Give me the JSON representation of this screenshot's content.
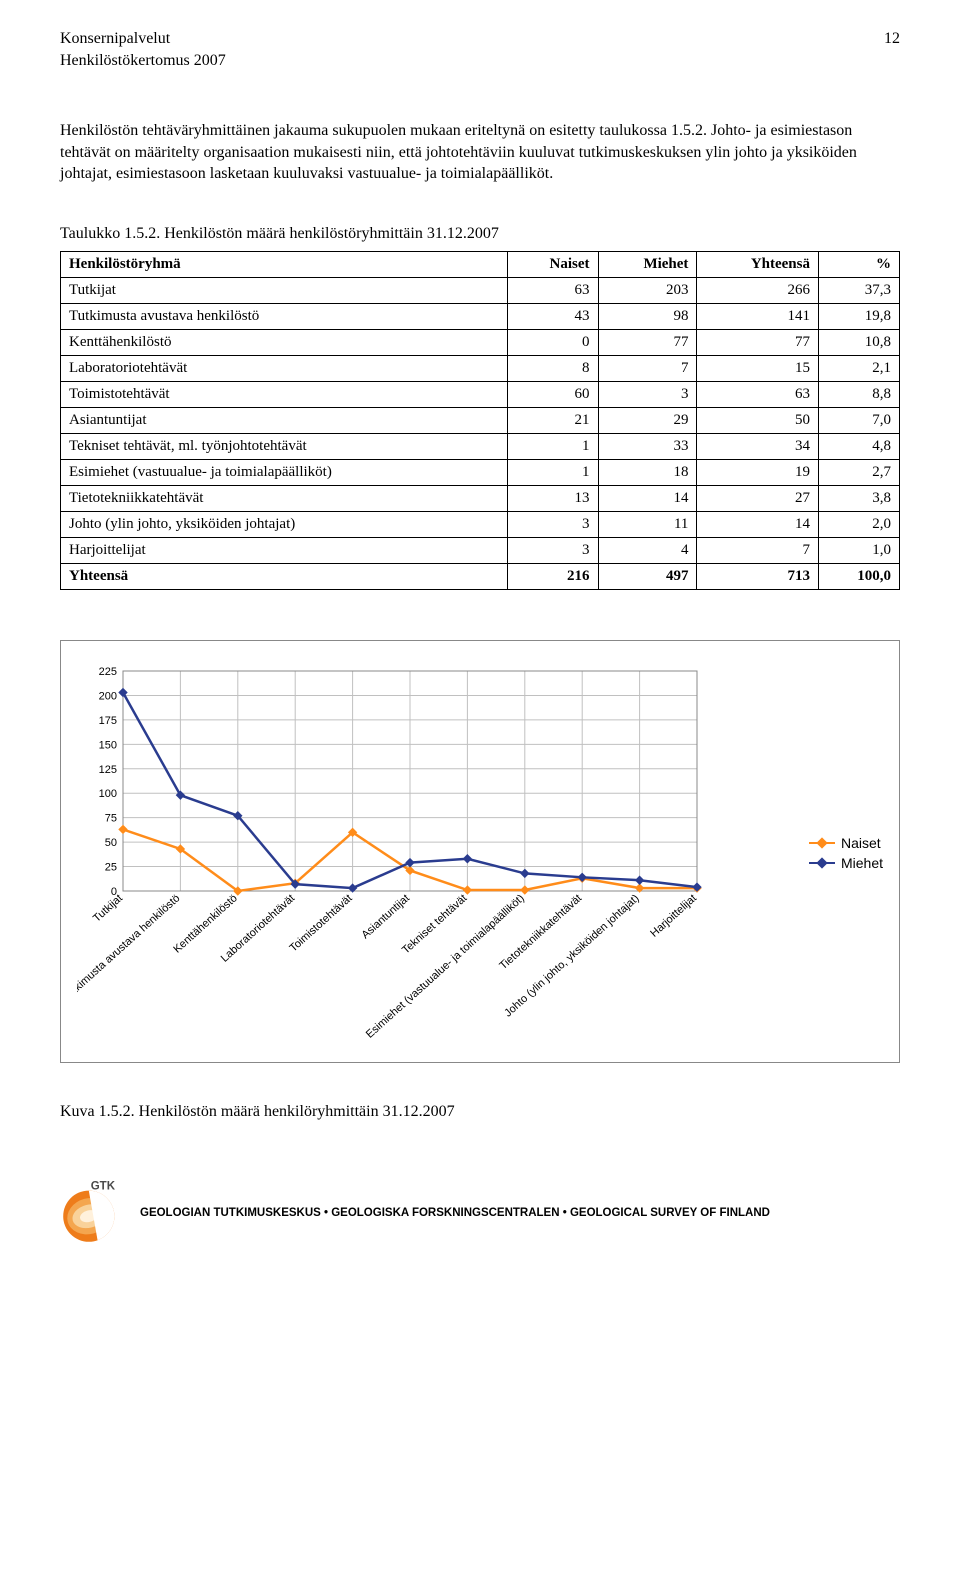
{
  "header": {
    "line1": "Konsernipalvelut",
    "line2": "Henkilöstökertomus 2007",
    "page": "12"
  },
  "paragraph": "Henkilöstön tehtäväryhmittäinen jakauma sukupuolen mukaan eriteltynä on esitetty taulukossa 1.5.2. Johto- ja esimiestason tehtävät on määritelty organisaation mukaisesti niin, että johtotehtäviin kuuluvat tutkimuskeskuksen ylin johto ja yksiköiden johtajat, esimiestasoon lasketaan kuuluvaksi vastuualue- ja toimialapäälliköt.",
  "table_caption": "Taulukko 1.5.2. Henkilöstön määrä henkilöstöryhmittäin 31.12.2007",
  "table": {
    "columns": [
      "Henkilöstöryhmä",
      "Naiset",
      "Miehet",
      "Yhteensä",
      "%"
    ],
    "rows": [
      [
        "Tutkijat",
        "63",
        "203",
        "266",
        "37,3"
      ],
      [
        "Tutkimusta avustava henkilöstö",
        "43",
        "98",
        "141",
        "19,8"
      ],
      [
        "Kenttähenkilöstö",
        "0",
        "77",
        "77",
        "10,8"
      ],
      [
        "Laboratoriotehtävät",
        "8",
        "7",
        "15",
        "2,1"
      ],
      [
        "Toimistotehtävät",
        "60",
        "3",
        "63",
        "8,8"
      ],
      [
        "Asiantuntijat",
        "21",
        "29",
        "50",
        "7,0"
      ],
      [
        "Tekniset tehtävät, ml. työnjohtotehtävät",
        "1",
        "33",
        "34",
        "4,8"
      ],
      [
        "Esimiehet (vastuualue- ja toimialapäälliköt)",
        "1",
        "18",
        "19",
        "2,7"
      ],
      [
        "Tietotekniikkatehtävät",
        "13",
        "14",
        "27",
        "3,8"
      ],
      [
        "Johto (ylin johto, yksiköiden johtajat)",
        "3",
        "11",
        "14",
        "2,0"
      ],
      [
        "Harjoittelijat",
        "3",
        "4",
        "7",
        "1,0"
      ],
      [
        "Yhteensä",
        "216",
        "497",
        "713",
        "100,0"
      ]
    ],
    "bold_last_row": true
  },
  "chart": {
    "type": "line",
    "categories": [
      "Tutkijat",
      "Tutkimusta avustava henkilöstö",
      "Kenttähenkilöstö",
      "Laboratoriotehtävät",
      "Toimistotehtävät",
      "Asiantuntijat",
      "Tekniset tehtävät",
      "Esimiehet (vastuualue- ja toimialapäälliköt)",
      "Tietotekniikkatehtävät",
      "Johto (ylin johto, yksiköiden johtajat)",
      "Harjoittelijat"
    ],
    "series": [
      {
        "name": "Naiset",
        "color": "#ff8c1a",
        "values": [
          63,
          43,
          0,
          8,
          60,
          21,
          1,
          1,
          13,
          3,
          3
        ]
      },
      {
        "name": "Miehet",
        "color": "#2a3c8f",
        "values": [
          203,
          98,
          77,
          7,
          3,
          29,
          33,
          18,
          14,
          11,
          4
        ]
      }
    ],
    "y_ticks": [
      0,
      25,
      50,
      75,
      100,
      125,
      150,
      175,
      200,
      225
    ],
    "ylim": [
      0,
      225
    ],
    "grid_color": "#c0c0c0",
    "bg": "#ffffff",
    "tick_font": 11,
    "label_font": 11,
    "marker": "diamond",
    "line_width": 2.5,
    "marker_size": 8
  },
  "chart_legend": {
    "naiset": "Naiset",
    "miehet": "Miehet"
  },
  "kuva_caption": "Kuva 1.5.2. Henkilöstön määrä henkilöryhmittäin 31.12.2007",
  "footer": {
    "logo_label": "GTK",
    "text": "GEOLOGIAN TUTKIMUSKESKUS • GEOLOGISKA FORSKNINGSCENTRALEN • GEOLOGICAL SURVEY OF FINLAND"
  },
  "colors": {
    "logo_outer": "#ee7c1a",
    "logo_mid": "#f4a64f",
    "logo_inner": "#f9d29a",
    "logo_text": "#4a4a4a"
  }
}
